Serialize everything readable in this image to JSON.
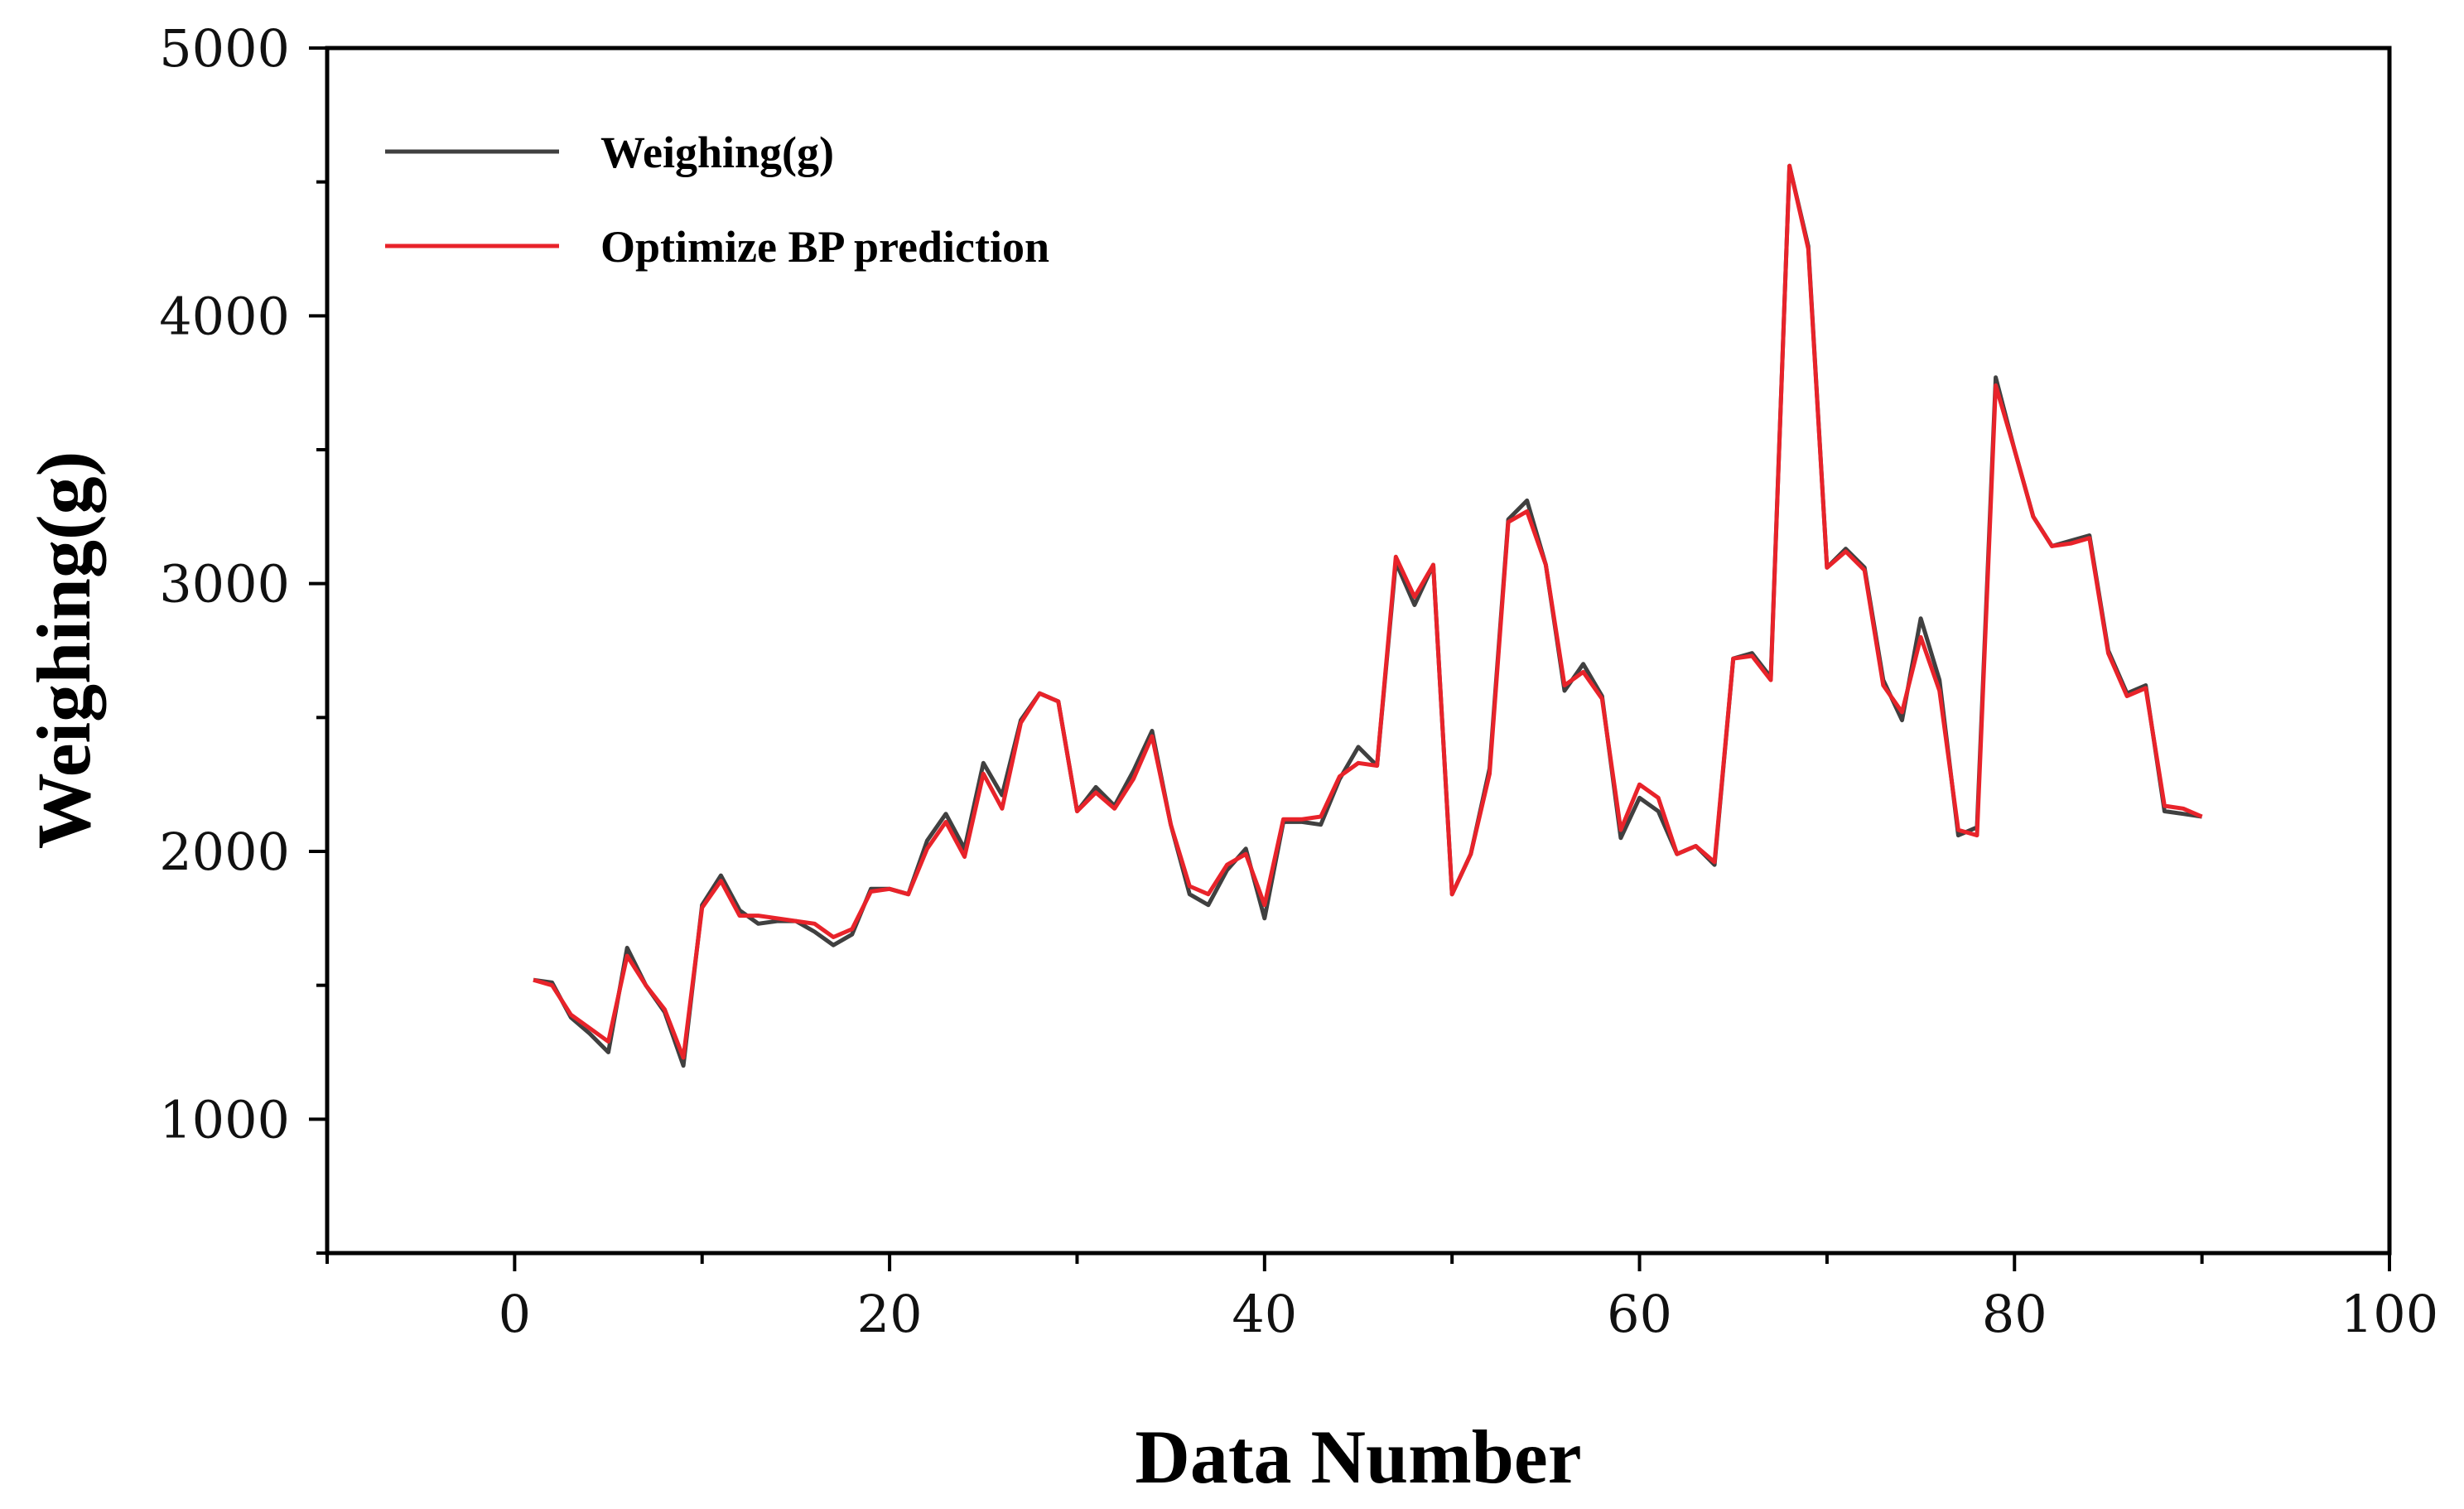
{
  "chart_data": {
    "type": "line",
    "title": "",
    "xlabel": "Data Number",
    "ylabel": "Weighing(g)",
    "xlim": [
      -10,
      100
    ],
    "ylim": [
      500,
      5000
    ],
    "xticks": [
      0,
      20,
      40,
      60,
      80,
      100
    ],
    "yticks": [
      1000,
      2000,
      3000,
      4000,
      5000
    ],
    "xtick_labels": [
      "0",
      "20",
      "40",
      "60",
      "80",
      "100"
    ],
    "ytick_labels": [
      "1000",
      "2000",
      "3000",
      "4000",
      "5000"
    ],
    "legend_position": "top-left",
    "x": [
      1,
      2,
      3,
      4,
      5,
      6,
      7,
      8,
      9,
      10,
      11,
      12,
      13,
      14,
      15,
      16,
      17,
      18,
      19,
      20,
      21,
      22,
      23,
      24,
      25,
      26,
      27,
      28,
      29,
      30,
      31,
      32,
      33,
      34,
      35,
      36,
      37,
      38,
      39,
      40,
      41,
      42,
      43,
      44,
      45,
      46,
      47,
      48,
      49,
      50,
      51,
      52,
      53,
      54,
      55,
      56,
      57,
      58,
      59,
      60,
      61,
      62,
      63,
      64,
      65,
      66,
      67,
      68,
      69,
      70,
      71,
      72,
      73,
      74,
      75,
      76,
      77,
      78,
      79,
      80,
      81,
      82,
      83,
      84,
      85,
      86,
      87,
      88,
      89,
      90
    ],
    "series": [
      {
        "name": "Weighing(g)",
        "color": "#404040",
        "values": [
          1520,
          1510,
          1380,
          1320,
          1250,
          1640,
          1500,
          1400,
          1200,
          1800,
          1910,
          1780,
          1730,
          1740,
          1740,
          1700,
          1650,
          1690,
          1860,
          1860,
          1840,
          2040,
          2140,
          2010,
          2330,
          2210,
          2490,
          2590,
          2560,
          2150,
          2240,
          2170,
          2300,
          2450,
          2100,
          1840,
          1800,
          1930,
          2010,
          1750,
          2110,
          2110,
          2100,
          2270,
          2390,
          2320,
          3080,
          2920,
          3070,
          1840,
          1990,
          2310,
          3240,
          3310,
          3070,
          2600,
          2700,
          2580,
          2050,
          2200,
          2150,
          1990,
          2020,
          1950,
          2720,
          2740,
          2650,
          4560,
          4260,
          3060,
          3130,
          3060,
          2640,
          2490,
          2870,
          2640,
          2060,
          2090,
          3770,
          3500,
          3250,
          3140,
          3160,
          3180,
          2750,
          2590,
          2620,
          2150,
          2140,
          2130
        ]
      },
      {
        "name": "Optimize BP prediction",
        "color": "#e8232a",
        "values": [
          1520,
          1500,
          1390,
          1340,
          1290,
          1610,
          1500,
          1410,
          1230,
          1790,
          1890,
          1760,
          1760,
          1750,
          1740,
          1730,
          1680,
          1710,
          1850,
          1860,
          1840,
          2010,
          2110,
          1980,
          2290,
          2160,
          2480,
          2590,
          2560,
          2150,
          2220,
          2160,
          2270,
          2430,
          2100,
          1870,
          1840,
          1950,
          1990,
          1800,
          2120,
          2120,
          2130,
          2280,
          2330,
          2320,
          3100,
          2950,
          3070,
          1840,
          1990,
          2290,
          3230,
          3270,
          3070,
          2620,
          2670,
          2570,
          2080,
          2250,
          2200,
          1990,
          2020,
          1960,
          2720,
          2730,
          2640,
          4560,
          4250,
          3060,
          3120,
          3050,
          2620,
          2520,
          2800,
          2600,
          2080,
          2060,
          3740,
          3500,
          3250,
          3140,
          3150,
          3170,
          2740,
          2580,
          2610,
          2170,
          2160,
          2130
        ]
      }
    ]
  }
}
